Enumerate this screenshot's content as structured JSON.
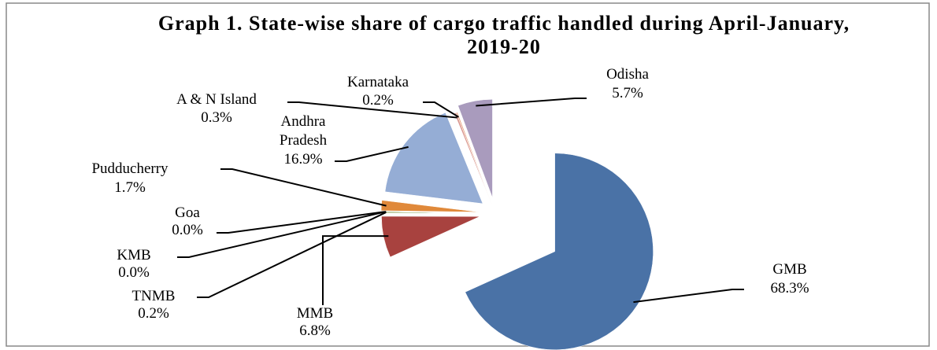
{
  "chart_data": {
    "type": "pie",
    "title": "Graph 1. State-wise share of cargo traffic handled during April-January, 2019-20",
    "categories": [
      "GMB",
      "MMB",
      "TNMB",
      "KMB",
      "Goa",
      "Pudducherry",
      "Andhra Pradesh",
      "A & N Island",
      "Karnataka",
      "Odisha"
    ],
    "values": [
      68.3,
      6.8,
      0.2,
      0.0,
      0.0,
      1.7,
      16.9,
      0.3,
      0.2,
      5.7
    ],
    "value_labels": [
      "68.3%",
      "6.8%",
      "0.2%",
      "0.0%",
      "0.0%",
      "1.7%",
      "16.9%",
      "0.3%",
      "0.2%",
      "5.7%"
    ],
    "colors": [
      "#4a72a6",
      "#a8423f",
      "#7f9a48",
      "#6a8f3a",
      "#5b9bd5",
      "#e0893a",
      "#95add5",
      "#d9968f",
      "#e6a07a",
      "#a99bbd"
    ]
  }
}
